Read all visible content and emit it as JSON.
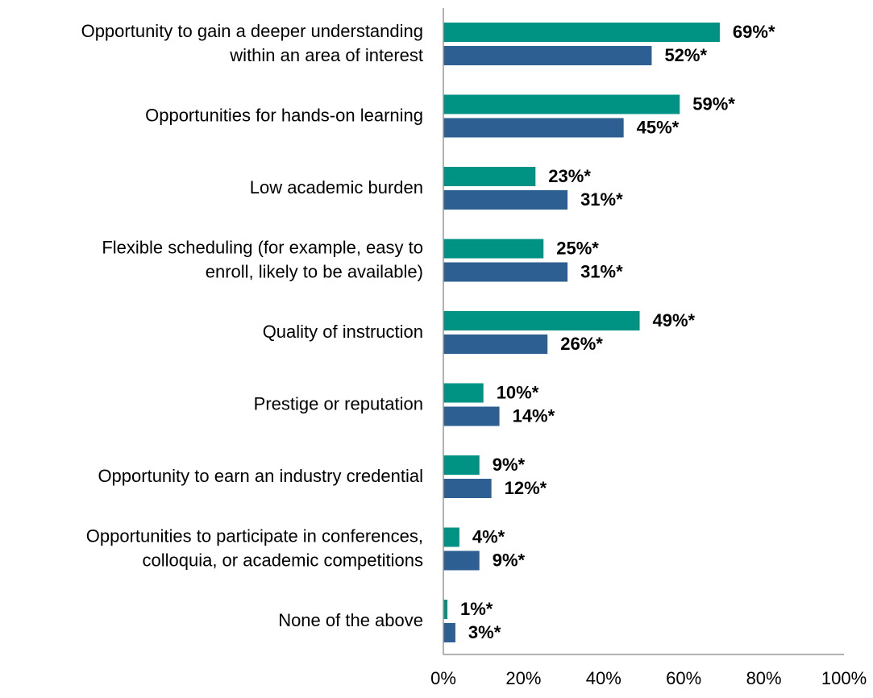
{
  "chart_data": {
    "type": "bar",
    "orientation": "horizontal",
    "categories": [
      [
        "Opportunity to gain a deeper understanding",
        "within an area of interest"
      ],
      [
        "Opportunities for hands-on learning"
      ],
      [
        "Low academic burden"
      ],
      [
        "Flexible scheduling (for example, easy to",
        "enroll, likely to be available)"
      ],
      [
        "Quality of instruction"
      ],
      [
        "Prestige or reputation"
      ],
      [
        "Opportunity to earn an industry credential"
      ],
      [
        "Opportunities to participate in conferences,",
        "colloquia, or academic competitions"
      ],
      [
        "None of the above"
      ]
    ],
    "series": [
      {
        "color": "#009383",
        "values": [
          69,
          59,
          23,
          25,
          49,
          10,
          9,
          4,
          1
        ],
        "value_labels": [
          "69%*",
          "59%*",
          "23%*",
          "25%*",
          "49%*",
          "10%*",
          "9%*",
          "4%*",
          "1%*"
        ]
      },
      {
        "color": "#2e5f93",
        "values": [
          52,
          45,
          31,
          31,
          26,
          14,
          12,
          9,
          3
        ],
        "value_labels": [
          "52%*",
          "45%*",
          "31%*",
          "31%*",
          "26%*",
          "14%*",
          "12%*",
          "9%*",
          "3%*"
        ]
      }
    ],
    "xlim": [
      0,
      100
    ],
    "xticks": [
      {
        "value": 0,
        "label": "0%"
      },
      {
        "value": 20,
        "label": "20%"
      },
      {
        "value": 40,
        "label": "40%"
      },
      {
        "value": 60,
        "label": "60%"
      },
      {
        "value": 80,
        "label": "80%"
      },
      {
        "value": 100,
        "label": "100%"
      }
    ]
  }
}
